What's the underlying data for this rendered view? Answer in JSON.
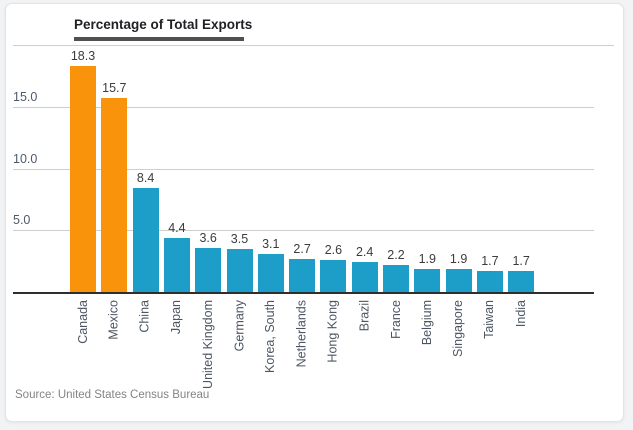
{
  "chart_data": {
    "type": "bar",
    "title": "Percentage of Total Exports",
    "source": "Source: United States Census Bureau",
    "categories": [
      "Canada",
      "Mexico",
      "China",
      "Japan",
      "United Kingdom",
      "Germany",
      "Korea, South",
      "Netherlands",
      "Hong Kong",
      "Brazil",
      "France",
      "Belgium",
      "Singapore",
      "Taiwan",
      "India"
    ],
    "values": [
      18.3,
      15.7,
      8.4,
      4.4,
      3.6,
      3.5,
      3.1,
      2.7,
      2.6,
      2.4,
      2.2,
      1.9,
      1.9,
      1.7,
      1.7
    ],
    "value_labels": [
      "18.3",
      "15.7",
      "8.4",
      "4.4",
      "3.6",
      "3.5",
      "3.1",
      "2.7",
      "2.6",
      "2.4",
      "2.2",
      "1.9",
      "1.9",
      "1.7",
      "1.7"
    ],
    "xlabel": "",
    "ylabel": "",
    "ylim": [
      0,
      20
    ],
    "yticks": [
      {
        "value": 5,
        "label": "5.0"
      },
      {
        "value": 10,
        "label": "10.0"
      },
      {
        "value": 15,
        "label": "15.0"
      }
    ],
    "grid": true,
    "legend": "none",
    "highlighted_categories": [
      "Canada",
      "Mexico"
    ],
    "highlight_color": "#F8930B",
    "bar_color": "#1C9EC8",
    "title_underline_color": "#505050",
    "axis_line_color": "#2e2e2e",
    "gridline_color": "#cfcfcf",
    "label_color": "#3c3c3c",
    "axis_label_color": "#4c5663"
  }
}
